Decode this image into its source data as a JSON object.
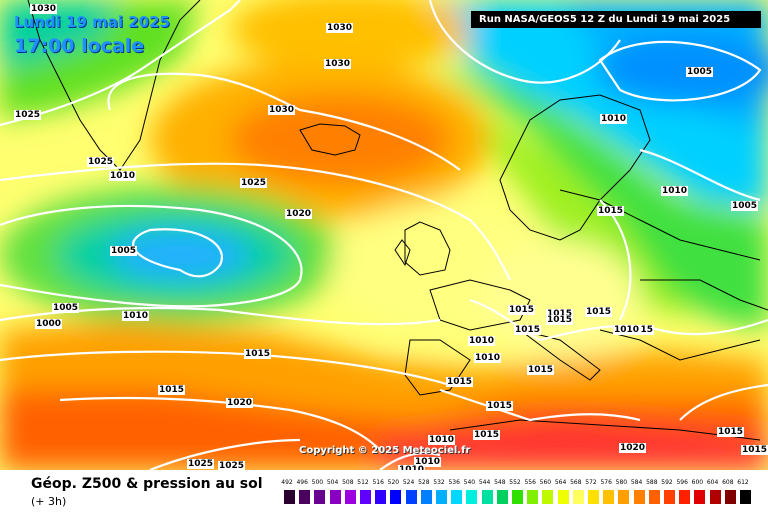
{
  "header": {
    "date": "Lundi 19 mai 2025",
    "time": "17:00 locale",
    "run_info": "Run NASA/GEOS5 12 Z du Lundi 19 mai 2025"
  },
  "copyright": "Copyright © 2025 Meteociel.fr",
  "isobars": [
    {
      "label": "1030"
    },
    {
      "label": "1030"
    },
    {
      "label": "1030"
    },
    {
      "label": "1030"
    },
    {
      "label": "1025"
    },
    {
      "label": "1025"
    },
    {
      "label": "1025"
    },
    {
      "label": "1025"
    },
    {
      "label": "1025"
    },
    {
      "label": "1010"
    },
    {
      "label": "1005"
    },
    {
      "label": "1020"
    },
    {
      "label": "1005"
    },
    {
      "label": "1000"
    },
    {
      "label": "1010"
    },
    {
      "label": "1015"
    },
    {
      "label": "1015"
    },
    {
      "label": "1020"
    },
    {
      "label": "1005"
    },
    {
      "label": "1010"
    },
    {
      "label": "1010"
    },
    {
      "label": "1015"
    },
    {
      "label": "1005"
    },
    {
      "label": "1015"
    },
    {
      "label": "1015"
    },
    {
      "label": "1015"
    },
    {
      "label": "1015"
    },
    {
      "label": "1015"
    },
    {
      "label": "1010"
    },
    {
      "label": "1015"
    },
    {
      "label": "1010"
    },
    {
      "label": "1010"
    },
    {
      "label": "1015"
    },
    {
      "label": "1015"
    },
    {
      "label": "1015"
    },
    {
      "label": "1015"
    },
    {
      "label": "1010"
    },
    {
      "label": "1015"
    },
    {
      "label": "1010"
    },
    {
      "label": "1010"
    },
    {
      "label": "1020"
    },
    {
      "label": "1015"
    }
  ],
  "footer": {
    "title": "Géop. Z500 & pression au sol",
    "subtitle": "(+ 3h)"
  },
  "legend": {
    "labels": [
      "492",
      "496",
      "500",
      "504",
      "508",
      "512",
      "516",
      "520",
      "524",
      "528",
      "532",
      "536",
      "540",
      "544",
      "548",
      "552",
      "556",
      "560",
      "564",
      "568",
      "572",
      "576",
      "580",
      "584",
      "588",
      "592",
      "596",
      "600",
      "604",
      "608",
      "612"
    ],
    "colors": [
      "#2a0030",
      "#4b0060",
      "#6a0090",
      "#8a00c0",
      "#9a00e0",
      "#6000ff",
      "#3000ff",
      "#0000ff",
      "#0040ff",
      "#0080ff",
      "#00b0ff",
      "#00d8ff",
      "#00f0e0",
      "#00e0a0",
      "#00d060",
      "#30e000",
      "#80f000",
      "#c0f800",
      "#f0ff00",
      "#ffff60",
      "#ffe000",
      "#ffc000",
      "#ffa000",
      "#ff8000",
      "#ff6000",
      "#ff4000",
      "#ff2000",
      "#e00000",
      "#b00000",
      "#800000",
      "#000000"
    ]
  }
}
